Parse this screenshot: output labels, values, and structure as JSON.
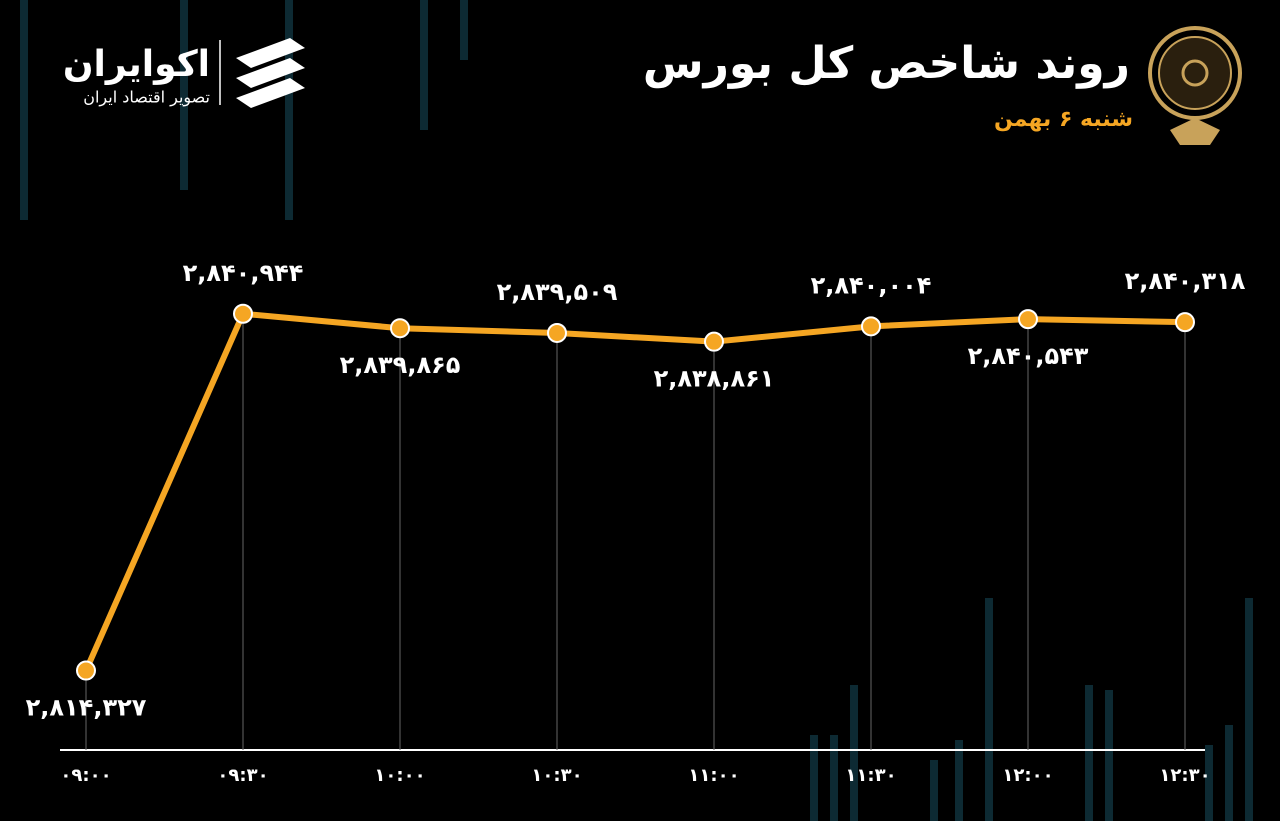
{
  "chart_data": {
    "type": "line",
    "title": "روند شاخص کل بورس",
    "subtitle": "شنبه ۶ بهمن",
    "brand": "اکوایران",
    "brand_tagline": "تصویر اقتصاد ایران",
    "categories": [
      "۰۹:۰۰",
      "۰۹:۳۰",
      "۱۰:۰۰",
      "۱۰:۳۰",
      "۱۱:۰۰",
      "۱۱:۳۰",
      "۱۲:۰۰",
      "۱۲:۳۰"
    ],
    "values": [
      2814327,
      2840944,
      2839865,
      2839509,
      2838861,
      2840004,
      2840543,
      2840318
    ],
    "value_labels": [
      "۲,۸۱۴,۳۲۷",
      "۲,۸۴۰,۹۴۴",
      "۲,۸۳۹,۸۶۵",
      "۲,۸۳۹,۵۰۹",
      "۲,۸۳۸,۸۶۱",
      "۲,۸۴۰,۰۰۴",
      "۲,۸۴۰,۵۴۳",
      "۲,۸۴۰,۳۱۸"
    ],
    "color": "#f5a623",
    "ylim": [
      2808400,
      2845700
    ]
  }
}
